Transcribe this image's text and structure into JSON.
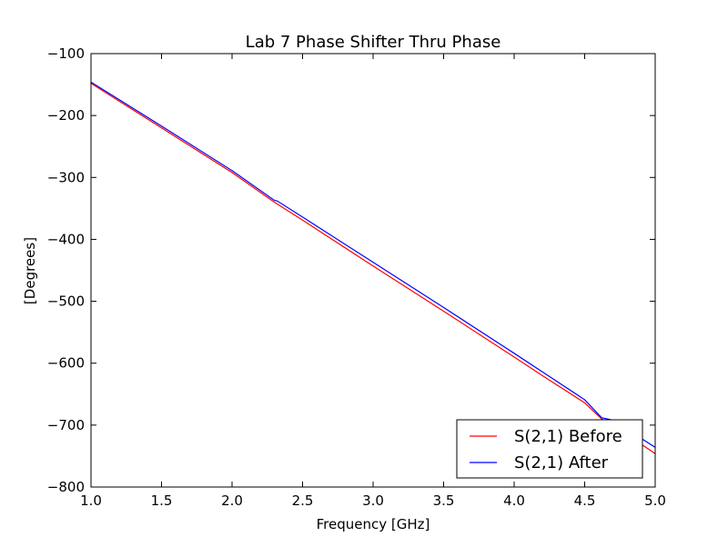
{
  "chart_data": {
    "type": "line",
    "title": "Lab 7 Phase Shifter Thru Phase",
    "xlabel": "Frequency [GHz]",
    "ylabel": "[Degrees]",
    "xlim": [
      1.0,
      5.0
    ],
    "ylim": [
      -800,
      -100
    ],
    "xticks": [
      1.0,
      1.5,
      2.0,
      2.5,
      3.0,
      3.5,
      4.0,
      4.5,
      5.0
    ],
    "xtick_labels": [
      "1.0",
      "1.5",
      "2.0",
      "2.5",
      "3.0",
      "3.5",
      "4.0",
      "4.5",
      "5.0"
    ],
    "yticks": [
      -100,
      -200,
      -300,
      -400,
      -500,
      -600,
      -700,
      -800
    ],
    "ytick_labels": [
      "−100",
      "−200",
      "−300",
      "−400",
      "−500",
      "−600",
      "−700",
      "−800"
    ],
    "grid": false,
    "legend_position": "bottom-right",
    "series": [
      {
        "name": "S(2,1) Before",
        "color": "#ff0000",
        "x": [
          1.0,
          1.5,
          2.0,
          2.3,
          2.5,
          3.0,
          3.5,
          4.0,
          4.2,
          4.5,
          4.62,
          4.7,
          5.0
        ],
        "y": [
          -148,
          -220,
          -292,
          -340,
          -369,
          -443,
          -516,
          -590,
          -620,
          -664,
          -690,
          -700,
          -746
        ]
      },
      {
        "name": "S(2,1) After",
        "color": "#0000ff",
        "x": [
          1.0,
          1.5,
          2.0,
          2.3,
          2.32,
          2.5,
          3.0,
          3.5,
          4.0,
          4.2,
          4.5,
          4.62,
          4.7,
          5.0
        ],
        "y": [
          -146,
          -217,
          -289,
          -337,
          -338,
          -364,
          -437,
          -510,
          -584,
          -614,
          -659,
          -688,
          -692,
          -736
        ]
      }
    ]
  }
}
